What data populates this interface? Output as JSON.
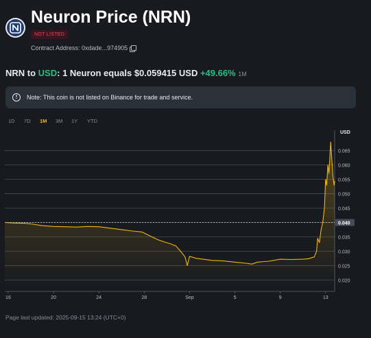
{
  "coin": {
    "title": "Neuron Price (NRN)",
    "logo_letter": "N",
    "badge": "NOT LISTED",
    "contract_label": "Contract Address: 0xdade...974905",
    "copy_icon": "copy-icon"
  },
  "price": {
    "pair_from": "NRN to ",
    "pair_to": "USD",
    "equals_text": ": 1 Neuron equals $0.059415 USD ",
    "change": "+49.66%",
    "period": "1M"
  },
  "note": {
    "icon": "!",
    "text": "Note: This coin is not listed on Binance for trade and service."
  },
  "ranges": [
    "1D",
    "7D",
    "1M",
    "3M",
    "1Y",
    "YTD"
  ],
  "active_range": "1M",
  "footer": "Page last updated: 2025-09-15 13:24 (UTC+0)",
  "colors": {
    "line": "#f0b90b",
    "background": "#181a20",
    "positive": "#2ebd85",
    "negative": "#f6465d"
  },
  "chart_data": {
    "type": "area",
    "unit_label": "USD",
    "y_ticks": [
      "0.065",
      "0.060",
      "0.055",
      "0.050",
      "0.045",
      "0.040",
      "0.035",
      "0.030",
      "0.025",
      "0.020"
    ],
    "ylim": [
      0.0172,
      0.0697
    ],
    "x_ticks": [
      {
        "day": 16,
        "label": "16"
      },
      {
        "day": 20,
        "label": "20"
      },
      {
        "day": 24,
        "label": "24"
      },
      {
        "day": 28,
        "label": "28"
      },
      {
        "day": 32,
        "label": "Sep"
      },
      {
        "day": 36,
        "label": "5"
      },
      {
        "day": 40,
        "label": "9"
      },
      {
        "day": 44,
        "label": "13"
      }
    ],
    "xlim": [
      15.7,
      44.8
    ],
    "current_value_label": "0.040",
    "current_value": 0.04,
    "grid": true,
    "series": [
      {
        "values": [
          [
            15.7,
            0.04
          ],
          [
            16.5,
            0.0398
          ],
          [
            17.5,
            0.0397
          ],
          [
            18.2,
            0.0394
          ],
          [
            19.0,
            0.0389
          ],
          [
            20.0,
            0.0386
          ],
          [
            21.0,
            0.0385
          ],
          [
            22.0,
            0.0384
          ],
          [
            23.0,
            0.0386
          ],
          [
            24.0,
            0.0385
          ],
          [
            25.0,
            0.038
          ],
          [
            26.0,
            0.0375
          ],
          [
            27.0,
            0.037
          ],
          [
            27.8,
            0.0367
          ],
          [
            28.4,
            0.0355
          ],
          [
            29.2,
            0.034
          ],
          [
            29.8,
            0.0332
          ],
          [
            30.3,
            0.0326
          ],
          [
            30.8,
            0.0318
          ],
          [
            31.2,
            0.03
          ],
          [
            31.6,
            0.028
          ],
          [
            31.8,
            0.025
          ],
          [
            32.0,
            0.0282
          ],
          [
            32.6,
            0.0275
          ],
          [
            33.2,
            0.0272
          ],
          [
            34.0,
            0.0268
          ],
          [
            35.0,
            0.0266
          ],
          [
            36.0,
            0.0262
          ],
          [
            37.0,
            0.0258
          ],
          [
            37.5,
            0.0255
          ],
          [
            38.0,
            0.0262
          ],
          [
            39.0,
            0.0265
          ],
          [
            40.0,
            0.0272
          ],
          [
            41.0,
            0.0271
          ],
          [
            42.0,
            0.0272
          ],
          [
            42.5,
            0.0274
          ],
          [
            43.0,
            0.028
          ],
          [
            43.2,
            0.03
          ],
          [
            43.3,
            0.0345
          ],
          [
            43.45,
            0.033
          ],
          [
            43.6,
            0.0375
          ],
          [
            43.75,
            0.04
          ],
          [
            43.9,
            0.045
          ],
          [
            44.0,
            0.055
          ],
          [
            44.1,
            0.053
          ],
          [
            44.2,
            0.06
          ],
          [
            44.3,
            0.057
          ],
          [
            44.45,
            0.068
          ],
          [
            44.55,
            0.062
          ],
          [
            44.65,
            0.056
          ],
          [
            44.75,
            0.053
          ],
          [
            44.8,
            0.0545
          ]
        ]
      }
    ]
  }
}
